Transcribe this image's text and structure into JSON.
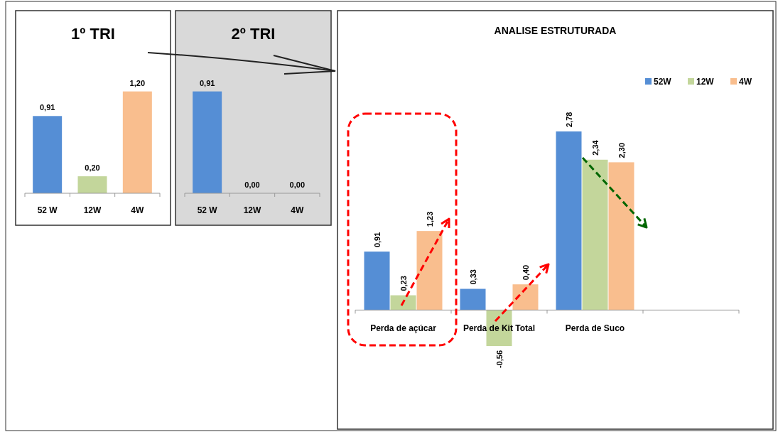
{
  "chart_data": [
    {
      "type": "bar",
      "title": "1º TRI",
      "categories": [
        "52 W",
        "12W",
        "4W"
      ],
      "values": [
        0.91,
        0.2,
        1.2
      ],
      "colors": [
        "#558ed5",
        "#c3d69b",
        "#f9be8e"
      ],
      "value_labels": [
        "0,91",
        "0,20",
        "1,20"
      ]
    },
    {
      "type": "bar",
      "title": "2º TRI",
      "categories": [
        "52 W",
        "12W",
        "4W"
      ],
      "values": [
        0.91,
        0,
        0
      ],
      "colors": [
        "#558ed5",
        "#c3d69b",
        "#f9be8e"
      ],
      "value_labels": [
        "0,91",
        "0,00",
        "0,00"
      ]
    },
    {
      "type": "bar",
      "title": "ANALISE ESTRUTURADA",
      "categories": [
        "Perda de açúcar",
        "Perda de Kit Total",
        "Perda de Suco",
        null
      ],
      "legend": "top right",
      "series": [
        {
          "name": "52W",
          "color": "#558ed5",
          "values": [
            0.91,
            0.33,
            2.78,
            null
          ],
          "value_labels": [
            "0,91",
            "0,33",
            "2,78",
            null
          ]
        },
        {
          "name": "12W",
          "color": "#c3d69b",
          "values": [
            0.23,
            -0.56,
            2.34,
            null
          ],
          "value_labels": [
            "0,23",
            "-0,56",
            "2,34",
            null
          ]
        },
        {
          "name": "4W",
          "color": "#f9be8e",
          "values": [
            1.23,
            0.4,
            2.3,
            null
          ],
          "value_labels": [
            "1,23",
            "0,40",
            "2,30",
            null
          ]
        }
      ]
    }
  ]
}
